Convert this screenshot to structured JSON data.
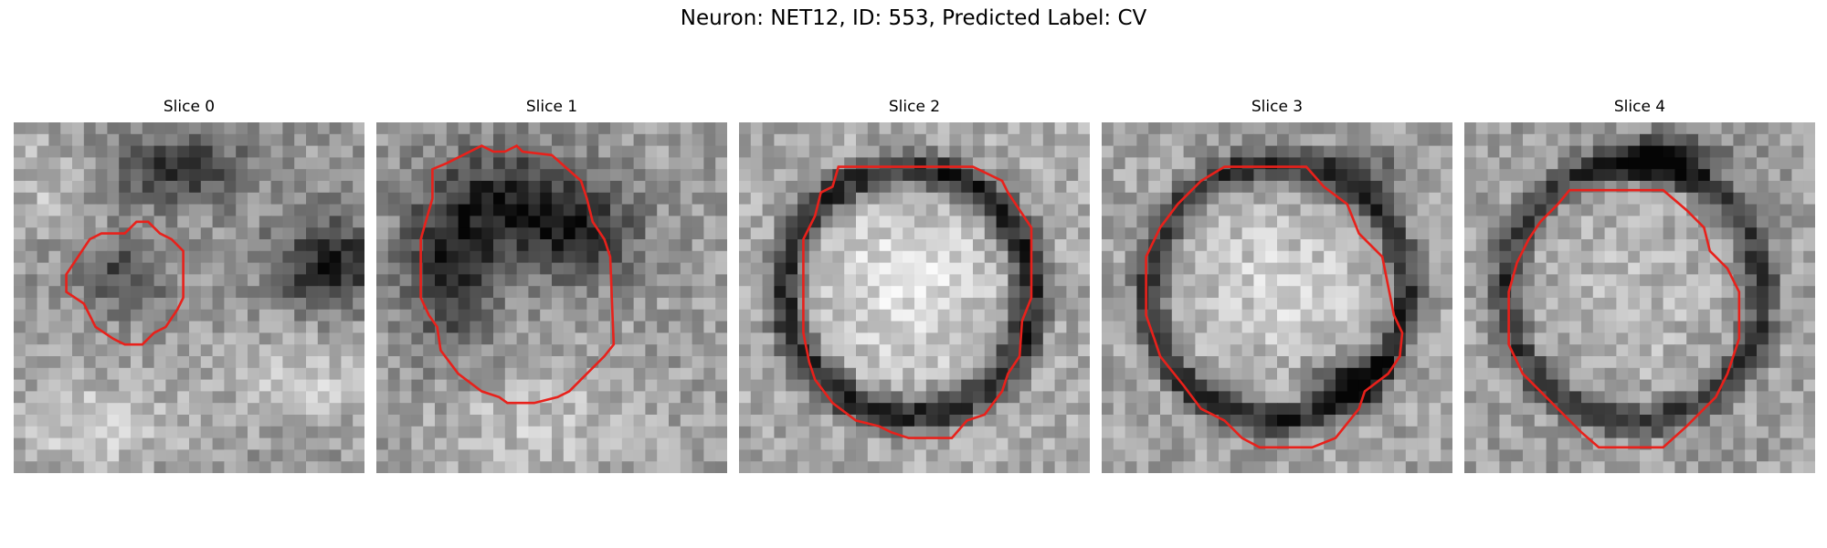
{
  "figure": {
    "title": "Neuron: NET12, ID: 553, Predicted Label: CV"
  },
  "panels": [
    {
      "title": "Slice 0"
    },
    {
      "title": "Slice 1"
    },
    {
      "title": "Slice 2"
    },
    {
      "title": "Slice 3"
    },
    {
      "title": "Slice 4"
    }
  ],
  "contour_color": "#e8211b",
  "image_style": "grayscale 30x30 electron microscopy crop"
}
